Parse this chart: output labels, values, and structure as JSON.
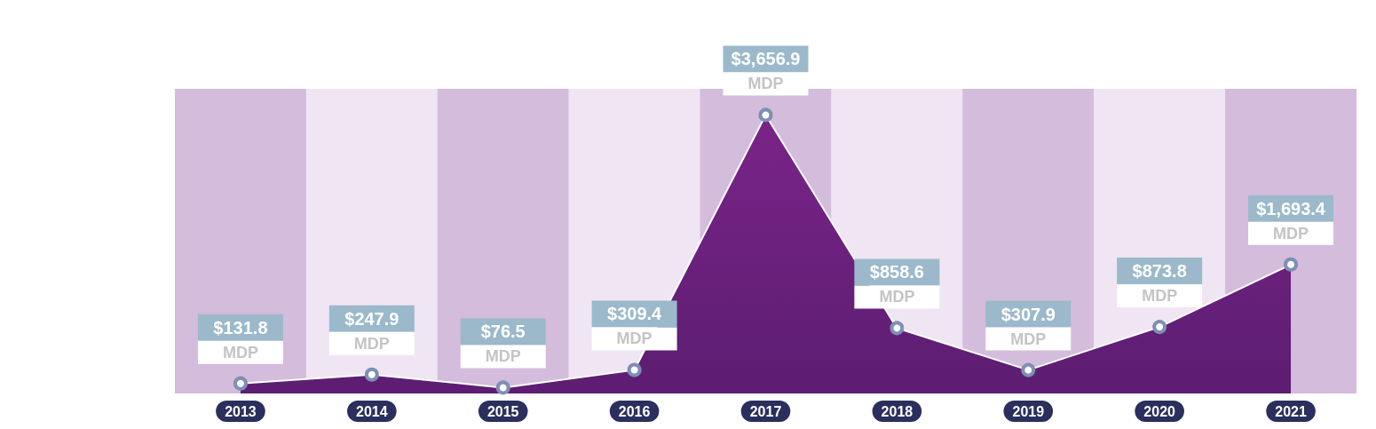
{
  "chart_data": {
    "type": "area",
    "categories": [
      "2013",
      "2014",
      "2015",
      "2016",
      "2017",
      "2018",
      "2019",
      "2020",
      "2021"
    ],
    "values": [
      131.8,
      247.9,
      76.5,
      309.4,
      3656.9,
      858.6,
      307.9,
      873.8,
      1693.4
    ],
    "value_labels": [
      "$131.8 MDP",
      "$247.9 MDP",
      "$76.5 MDP",
      "$309.4 MDP",
      "$3,656.9 MDP",
      "$858.6 MDP",
      "$307.9 MDP",
      "$873.8 MDP",
      "$1,693.4 MDP"
    ],
    "color": "#5c1d72",
    "tick_labels": "x",
    "marker": "circle"
  }
}
